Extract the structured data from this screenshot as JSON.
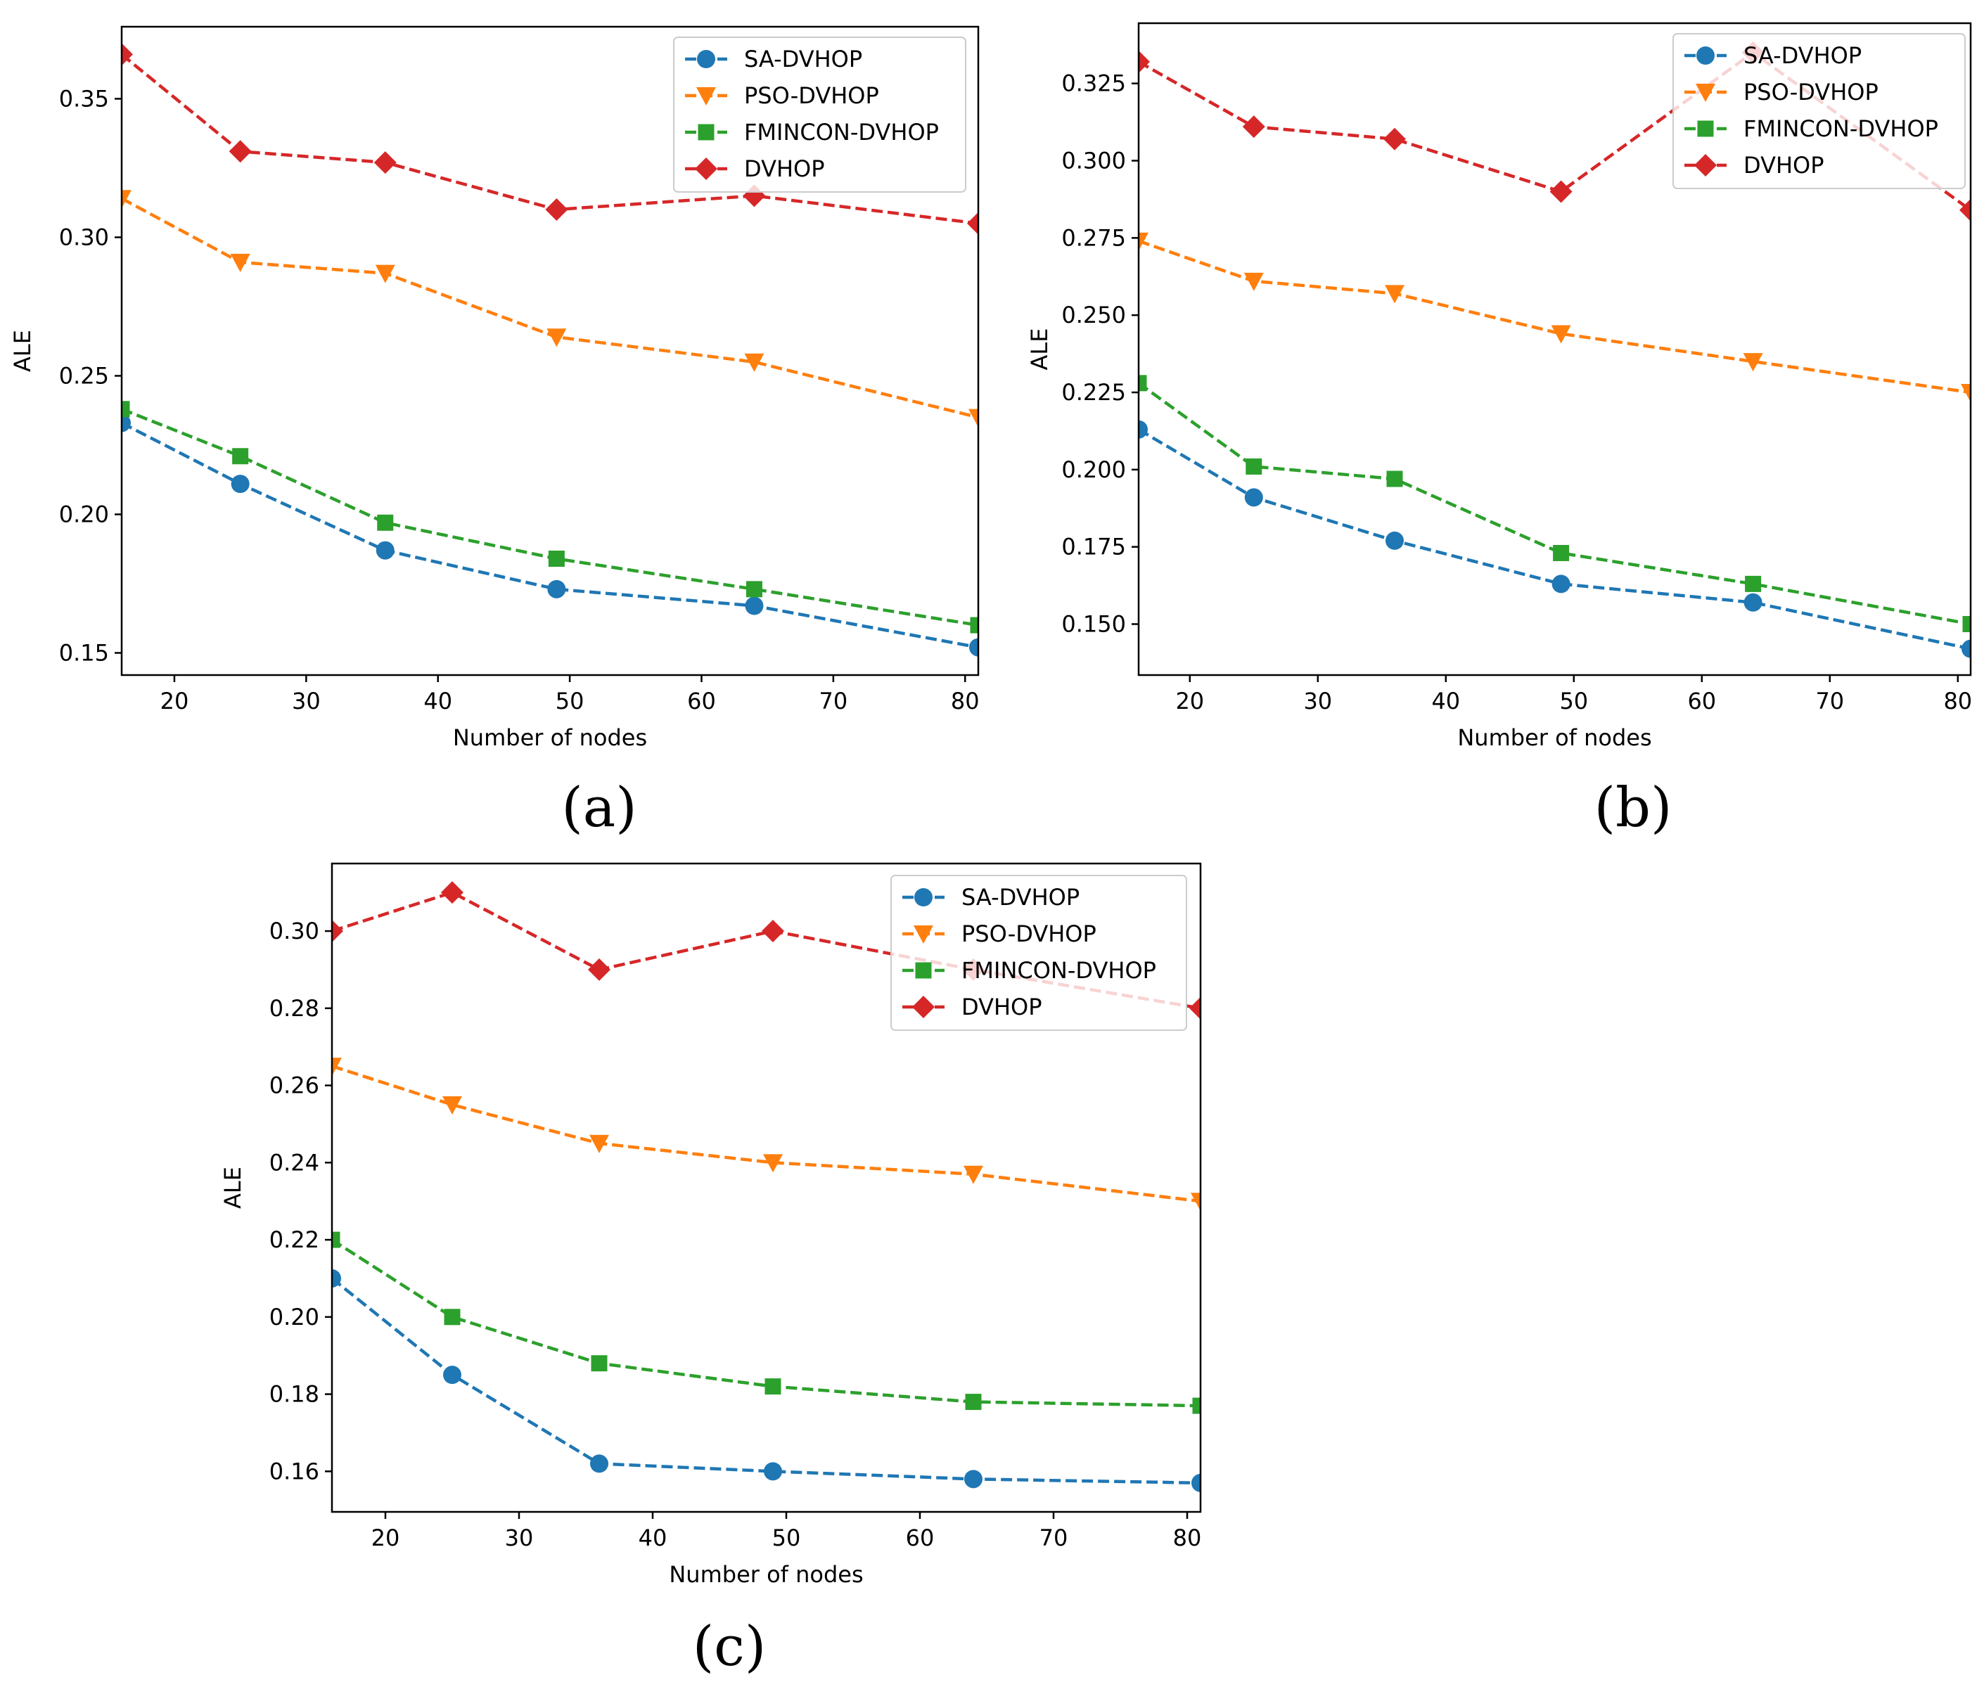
{
  "colors": {
    "sa": "#1f77b4",
    "pso": "#ff7f0e",
    "fmincon": "#2ca02c",
    "dvhop": "#d62728",
    "axis": "#000000"
  },
  "captions": [
    "(a)",
    "(b)",
    "(c)"
  ],
  "chart_data": [
    {
      "type": "line",
      "panel": "(a)",
      "title": "",
      "xlabel": "Number of nodes",
      "ylabel": "ALE",
      "xlim": [
        16,
        81
      ],
      "ylim": [
        0.142,
        0.376
      ],
      "xticks": [
        20,
        30,
        40,
        50,
        60,
        70,
        80
      ],
      "yticks": [
        0.15,
        0.2,
        0.25,
        0.3,
        0.35
      ],
      "ytick_labels": [
        "0.15",
        "0.20",
        "0.25",
        "0.30",
        "0.35"
      ],
      "legend": "top-right",
      "grid": false,
      "x": [
        16,
        25,
        36,
        49,
        64,
        81
      ],
      "series": [
        {
          "name": "SA-DVHOP",
          "marker": "circle",
          "color_key": "sa",
          "values": [
            0.233,
            0.211,
            0.187,
            0.173,
            0.167,
            0.152
          ]
        },
        {
          "name": "PSO-DVHOP",
          "marker": "triangle-down",
          "color_key": "pso",
          "values": [
            0.314,
            0.291,
            0.287,
            0.264,
            0.255,
            0.235
          ]
        },
        {
          "name": "FMINCON-DVHOP",
          "marker": "square",
          "color_key": "fmincon",
          "values": [
            0.238,
            0.221,
            0.197,
            0.184,
            0.173,
            0.16
          ]
        },
        {
          "name": "DVHOP",
          "marker": "diamond",
          "color_key": "dvhop",
          "values": [
            0.366,
            0.331,
            0.327,
            0.31,
            0.315,
            0.305
          ]
        }
      ]
    },
    {
      "type": "line",
      "panel": "(b)",
      "title": "",
      "xlabel": "Number of nodes",
      "ylabel": "ALE",
      "xlim": [
        16,
        81
      ],
      "ylim": [
        0.1335,
        0.3445
      ],
      "xticks": [
        20,
        30,
        40,
        50,
        60,
        70,
        80
      ],
      "yticks": [
        0.15,
        0.175,
        0.2,
        0.225,
        0.25,
        0.275,
        0.3,
        0.325
      ],
      "ytick_labels": [
        "0.150",
        "0.175",
        "0.200",
        "0.225",
        "0.250",
        "0.275",
        "0.300",
        "0.325"
      ],
      "legend": "top-right",
      "grid": false,
      "x": [
        16,
        25,
        36,
        49,
        64,
        81
      ],
      "series": [
        {
          "name": "SA-DVHOP",
          "marker": "circle",
          "color_key": "sa",
          "values": [
            0.213,
            0.191,
            0.177,
            0.163,
            0.157,
            0.142
          ]
        },
        {
          "name": "PSO-DVHOP",
          "marker": "triangle-down",
          "color_key": "pso",
          "values": [
            0.274,
            0.261,
            0.257,
            0.244,
            0.235,
            0.225
          ]
        },
        {
          "name": "FMINCON-DVHOP",
          "marker": "square",
          "color_key": "fmincon",
          "values": [
            0.228,
            0.201,
            0.197,
            0.173,
            0.163,
            0.15
          ]
        },
        {
          "name": "DVHOP",
          "marker": "diamond",
          "color_key": "dvhop",
          "values": [
            0.332,
            0.311,
            0.307,
            0.29,
            0.335,
            0.284
          ]
        }
      ]
    },
    {
      "type": "line",
      "panel": "(c)",
      "title": "",
      "xlabel": "Number of nodes",
      "ylabel": "ALE",
      "xlim": [
        16,
        81
      ],
      "ylim": [
        0.1495,
        0.3175
      ],
      "xticks": [
        20,
        30,
        40,
        50,
        60,
        70,
        80
      ],
      "yticks": [
        0.16,
        0.18,
        0.2,
        0.22,
        0.24,
        0.26,
        0.28,
        0.3
      ],
      "ytick_labels": [
        "0.16",
        "0.18",
        "0.20",
        "0.22",
        "0.24",
        "0.26",
        "0.28",
        "0.30"
      ],
      "legend": "top-right",
      "grid": false,
      "x": [
        16,
        25,
        36,
        49,
        64,
        81
      ],
      "series": [
        {
          "name": "SA-DVHOP",
          "marker": "circle",
          "color_key": "sa",
          "values": [
            0.21,
            0.185,
            0.162,
            0.16,
            0.158,
            0.157
          ]
        },
        {
          "name": "PSO-DVHOP",
          "marker": "triangle-down",
          "color_key": "pso",
          "values": [
            0.265,
            0.255,
            0.245,
            0.24,
            0.237,
            0.23
          ]
        },
        {
          "name": "FMINCON-DVHOP",
          "marker": "square",
          "color_key": "fmincon",
          "values": [
            0.22,
            0.2,
            0.188,
            0.182,
            0.178,
            0.177
          ]
        },
        {
          "name": "DVHOP",
          "marker": "diamond",
          "color_key": "dvhop",
          "values": [
            0.3,
            0.31,
            0.29,
            0.3,
            0.29,
            0.28
          ]
        }
      ]
    }
  ]
}
